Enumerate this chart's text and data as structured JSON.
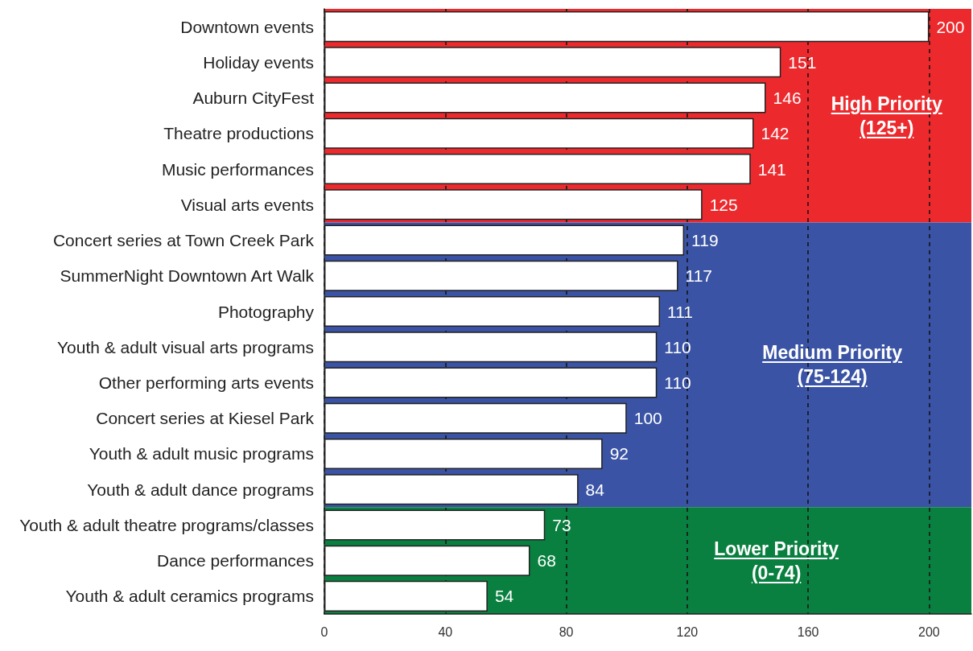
{
  "chart_data": {
    "type": "bar",
    "orientation": "horizontal",
    "categories": [
      "Downtown events",
      "Holiday events",
      "Auburn CityFest",
      "Theatre productions",
      "Music performances",
      "Visual arts events",
      "Concert series at Town Creek Park",
      "SummerNight Downtown Art Walk",
      "Photography",
      "Youth & adult visual arts programs",
      "Other performing arts events",
      "Concert series at Kiesel Park",
      "Youth & adult music programs",
      "Youth & adult dance programs",
      "Youth & adult theatre programs/classes",
      "Dance performances",
      "Youth & adult ceramics programs"
    ],
    "values": [
      200,
      151,
      146,
      142,
      141,
      125,
      119,
      117,
      111,
      110,
      110,
      100,
      92,
      84,
      73,
      68,
      54
    ],
    "color": "#ffffff",
    "xlim": [
      0,
      214
    ],
    "xticks": [
      0,
      40,
      80,
      120,
      160,
      200
    ],
    "grid": "x",
    "data_labels": true,
    "bands": [
      {
        "axis": "y",
        "from": "Downtown events",
        "to": "Visual arts events",
        "label": "High Priority\n(125+)",
        "color": "#ec2a2e"
      },
      {
        "axis": "y",
        "from": "Concert series at Town Creek Park",
        "to": "Youth & adult dance programs",
        "label": "Medium Priority\n(75-124)",
        "color": "#3a53a4"
      },
      {
        "axis": "y",
        "from": "Youth & adult theatre programs/classes",
        "to": "Youth & adult ceramics programs",
        "label": "Lower Priority\n(0-74)",
        "color": "#0a8040"
      }
    ]
  }
}
